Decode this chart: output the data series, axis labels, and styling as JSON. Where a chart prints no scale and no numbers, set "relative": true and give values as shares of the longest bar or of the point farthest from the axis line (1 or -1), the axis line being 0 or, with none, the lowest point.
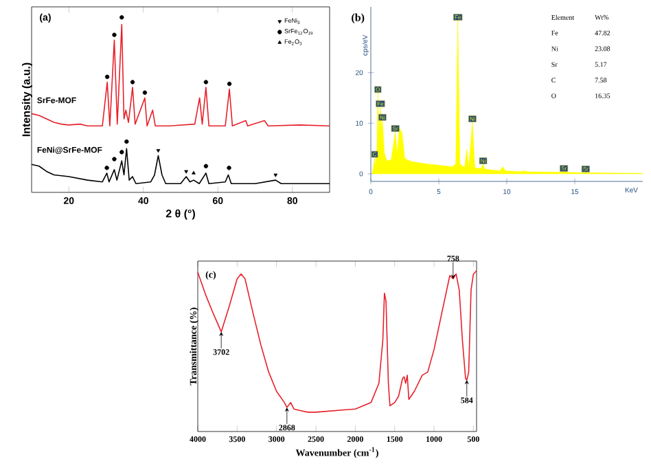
{
  "chart_data": [
    {
      "type": "line",
      "title": "(a)",
      "xlabel": "2 θ (°)",
      "ylabel": "Intensity (a.u.)",
      "relative": true,
      "xlim": [
        10,
        90
      ],
      "xticks": [
        20,
        40,
        60,
        80
      ],
      "legend": "top right",
      "tick_labels": "x",
      "series": [
        {
          "name": "SrFe-MOF",
          "type": "line",
          "color": "#e8202a",
          "x": [
            10,
            12,
            14,
            16,
            18,
            20,
            23,
            25,
            29,
            30.3,
            31,
            32.2,
            33,
            34.2,
            34.8,
            35.3,
            36,
            37.1,
            37.8,
            40.4,
            41,
            42.5,
            43.2,
            47,
            53.8,
            55.1,
            55.8,
            56.8,
            57.6,
            62,
            63.1,
            63.9,
            67.5,
            68,
            72.5,
            73.5,
            82,
            90
          ],
          "values": [
            0.45,
            0.44,
            0.42,
            0.4,
            0.39,
            0.385,
            0.39,
            0.38,
            0.38,
            0.63,
            0.38,
            0.87,
            0.39,
            0.96,
            0.42,
            0.47,
            0.4,
            0.6,
            0.39,
            0.54,
            0.38,
            0.47,
            0.38,
            0.38,
            0.39,
            0.54,
            0.39,
            0.6,
            0.38,
            0.38,
            0.59,
            0.38,
            0.41,
            0.38,
            0.41,
            0.38,
            0.385,
            0.38
          ]
        },
        {
          "name": "FeNi@SrFe-MOF",
          "type": "line",
          "color": "#000000",
          "x": [
            10,
            12,
            14,
            16,
            20,
            25,
            29,
            30.2,
            30.8,
            32.2,
            32.9,
            34.2,
            34.8,
            35.5,
            36.2,
            37.1,
            38,
            42,
            43,
            44,
            45,
            46,
            50,
            51.5,
            52.5,
            53.5,
            55,
            56.8,
            57.6,
            62,
            62.8,
            63.6,
            70,
            75.5,
            77,
            90
          ],
          "values": [
            0.16,
            0.15,
            0.12,
            0.1,
            0.09,
            0.07,
            0.06,
            0.11,
            0.06,
            0.13,
            0.07,
            0.18,
            0.1,
            0.25,
            0.07,
            0.09,
            0.05,
            0.06,
            0.1,
            0.21,
            0.1,
            0.05,
            0.05,
            0.09,
            0.06,
            0.07,
            0.05,
            0.11,
            0.05,
            0.06,
            0.1,
            0.05,
            0.05,
            0.07,
            0.05,
            0.05
          ]
        },
        {
          "name": "FeNi$_{3}$",
          "type": "scatter",
          "marker": "triangle-down",
          "color": "#000000",
          "x": [
            44,
            51.5,
            75.5
          ],
          "values": [
            0.24,
            0.12,
            0.1
          ]
        },
        {
          "name": "SrFe$_{12}$O$_{19}$",
          "type": "scatter",
          "marker": "circle",
          "color": "#000000",
          "x": [
            30.3,
            32.2,
            34.2,
            37.1,
            40.4,
            56.8,
            63.1,
            30.2,
            32.2,
            34.2,
            35.5,
            56.8,
            63
          ],
          "values": [
            0.66,
            0.9,
            1.0,
            0.63,
            0.57,
            0.63,
            0.62,
            0.14,
            0.19,
            0.23,
            0.29,
            0.15,
            0.14
          ]
        },
        {
          "name": "Fe$_{2}$O$_{3}$",
          "type": "scatter",
          "marker": "triangle",
          "color": "#000000",
          "x": [
            53.5
          ],
          "values": [
            0.11
          ]
        }
      ]
    },
    {
      "type": "area",
      "title": "(b)",
      "xlabel": "KeV",
      "ylabel": "cps/eV",
      "xlim": [
        0,
        20
      ],
      "ylim": [
        -1.5,
        33
      ],
      "xticks": [
        0,
        5,
        10,
        15
      ],
      "yticks": [
        0,
        10,
        20
      ],
      "series": [
        {
          "color": "#ffff00",
          "x": [
            0.1,
            0.2,
            0.28,
            0.35,
            0.45,
            0.52,
            0.6,
            0.7,
            0.78,
            0.85,
            1.0,
            1.2,
            1.5,
            1.8,
            1.95,
            2.1,
            2.3,
            2.5,
            3,
            4,
            5,
            6,
            6.25,
            6.4,
            6.55,
            6.9,
            7.06,
            7.2,
            7.47,
            7.65,
            8.1,
            8.26,
            8.4,
            9.5,
            9.7,
            9.9,
            11,
            11.3,
            11.5,
            14,
            14.2,
            14.4,
            15.6,
            15.8,
            16,
            20
          ],
          "values": [
            0,
            1.5,
            3.2,
            1.5,
            5,
            16,
            8,
            13.2,
            9,
            10.5,
            4,
            2.5,
            2.8,
            8.3,
            4,
            9.2,
            8,
            3,
            2.4,
            2,
            1.7,
            1.4,
            2,
            30.3,
            2,
            1.2,
            4.9,
            1.2,
            10.2,
            1.2,
            1,
            1.9,
            0.9,
            0.6,
            1.4,
            0.6,
            0.4,
            0.6,
            0.4,
            0.3,
            0.4,
            0.3,
            0.2,
            0.3,
            0.2,
            0.1
          ]
        }
      ],
      "annotations": [
        {
          "text": "C",
          "x": 0.28,
          "y": 3.2
        },
        {
          "text": "O",
          "x": 0.52,
          "y": 16
        },
        {
          "text": "Fe",
          "x": 0.7,
          "y": 13.2
        },
        {
          "text": "Ni",
          "x": 0.85,
          "y": 10.5
        },
        {
          "text": "Sr",
          "x": 1.8,
          "y": 8.3
        },
        {
          "text": "Fe",
          "x": 6.4,
          "y": 30.3
        },
        {
          "text": "Ni",
          "x": 7.47,
          "y": 10.2
        },
        {
          "text": "Ni",
          "x": 8.26,
          "y": 1.9
        },
        {
          "text": "Sr",
          "x": 14.2,
          "y": 0.4
        },
        {
          "text": "Sr",
          "x": 15.8,
          "y": 0.3
        },
        "Element",
        "Wt%",
        "Fe",
        "47.82",
        "Ni",
        "23.08",
        "Sr",
        "5.17",
        "C",
        "7.58",
        "O",
        "16.35"
      ]
    },
    {
      "type": "line",
      "title": "(c)",
      "xlabel": "Wavenumber (cm$^{-1}$)",
      "ylabel": "Transmittance (%)",
      "relative": true,
      "xlim": [
        4000,
        460
      ],
      "xticks": [
        4000,
        3500,
        3000,
        2500,
        2000,
        1500,
        1000,
        500
      ],
      "tick_labels": "x",
      "series": [
        {
          "color": "#e8202a",
          "x": [
            4000,
            3900,
            3800,
            3702,
            3600,
            3500,
            3450,
            3400,
            3300,
            3200,
            3100,
            3000,
            2900,
            2868,
            2820,
            2780,
            2700,
            2600,
            2500,
            2000,
            1800,
            1700,
            1650,
            1630,
            1610,
            1580,
            1560,
            1500,
            1450,
            1400,
            1380,
            1360,
            1340,
            1320,
            1250,
            1150,
            1080,
            1000,
            900,
            800,
            758,
            720,
            680,
            640,
            600,
            584,
            560,
            530,
            500,
            460
          ],
          "values": [
            0.99,
            0.85,
            0.73,
            0.62,
            0.78,
            0.95,
            0.98,
            0.95,
            0.74,
            0.54,
            0.37,
            0.25,
            0.18,
            0.15,
            0.18,
            0.14,
            0.13,
            0.12,
            0.12,
            0.14,
            0.18,
            0.3,
            0.57,
            0.86,
            0.81,
            0.3,
            0.16,
            0.18,
            0.22,
            0.33,
            0.34,
            0.3,
            0.35,
            0.2,
            0.25,
            0.35,
            0.37,
            0.51,
            0.74,
            0.97,
            0.95,
            0.98,
            0.88,
            0.57,
            0.33,
            0.32,
            0.37,
            0.88,
            0.98,
            1.0
          ]
        }
      ],
      "annotations": [
        {
          "text": "3702",
          "x": 3702,
          "y": 0.62
        },
        {
          "text": "2868",
          "x": 2868,
          "y": 0.15
        },
        {
          "text": "758",
          "x": 758,
          "y": 0.95
        },
        {
          "text": "584",
          "x": 584,
          "y": 0.32
        }
      ]
    }
  ]
}
